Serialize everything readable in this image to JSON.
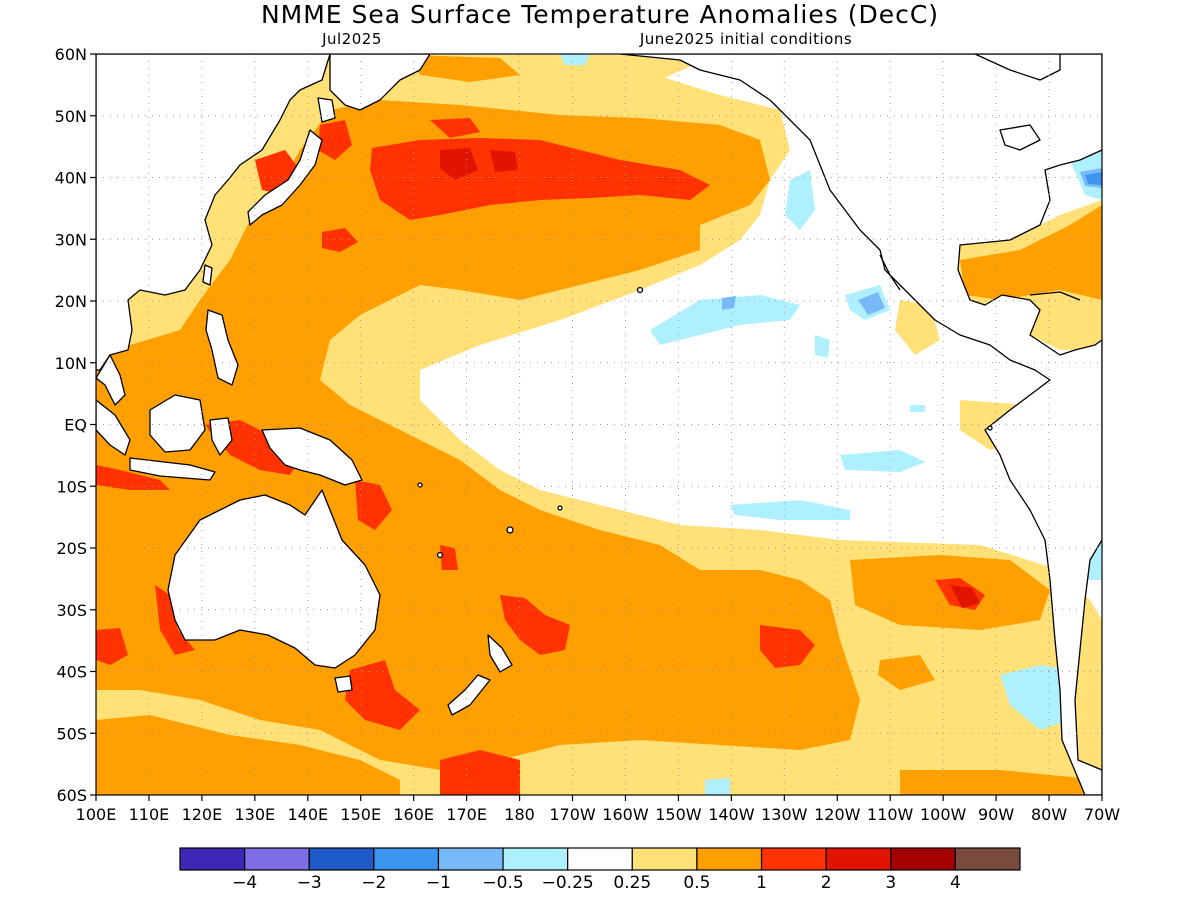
{
  "figure": {
    "title": "NMME Sea Surface Temperature Anomalies (DecC)",
    "valid_month": "Jul2025",
    "initial_conditions": "June2025 initial conditions"
  },
  "map": {
    "projection": "equirectangular",
    "lon_range": [
      100,
      290
    ],
    "lat_range": [
      -60,
      60
    ],
    "grid": "dotted",
    "lat_labels": [
      "60N",
      "50N",
      "40N",
      "30N",
      "20N",
      "10N",
      "EQ",
      "10S",
      "20S",
      "30S",
      "40S",
      "50S",
      "60S"
    ],
    "lon_labels": [
      "100E",
      "110E",
      "120E",
      "130E",
      "140E",
      "150E",
      "160E",
      "170E",
      "180",
      "170W",
      "160W",
      "150W",
      "140W",
      "130W",
      "120W",
      "110W",
      "100W",
      "90W",
      "80W",
      "70W"
    ]
  },
  "colorbar": {
    "bins": [
      {
        "color": "#3c28b4"
      },
      {
        "color": "#7d6ee6"
      },
      {
        "color": "#1e5ac8"
      },
      {
        "color": "#3c96f0"
      },
      {
        "color": "#78b9fa"
      },
      {
        "color": "#aff0ff"
      },
      {
        "color": "#ffffff"
      },
      {
        "color": "#ffe178"
      },
      {
        "color": "#ffa000"
      },
      {
        "color": "#ff3200"
      },
      {
        "color": "#e11400"
      },
      {
        "color": "#a50000"
      },
      {
        "color": "#784b3c"
      }
    ],
    "tick_labels": [
      "−4",
      "−3",
      "−2",
      "−1",
      "−0.5",
      "−0.25",
      "0.25",
      "0.5",
      "1",
      "2",
      "3",
      "4"
    ]
  }
}
